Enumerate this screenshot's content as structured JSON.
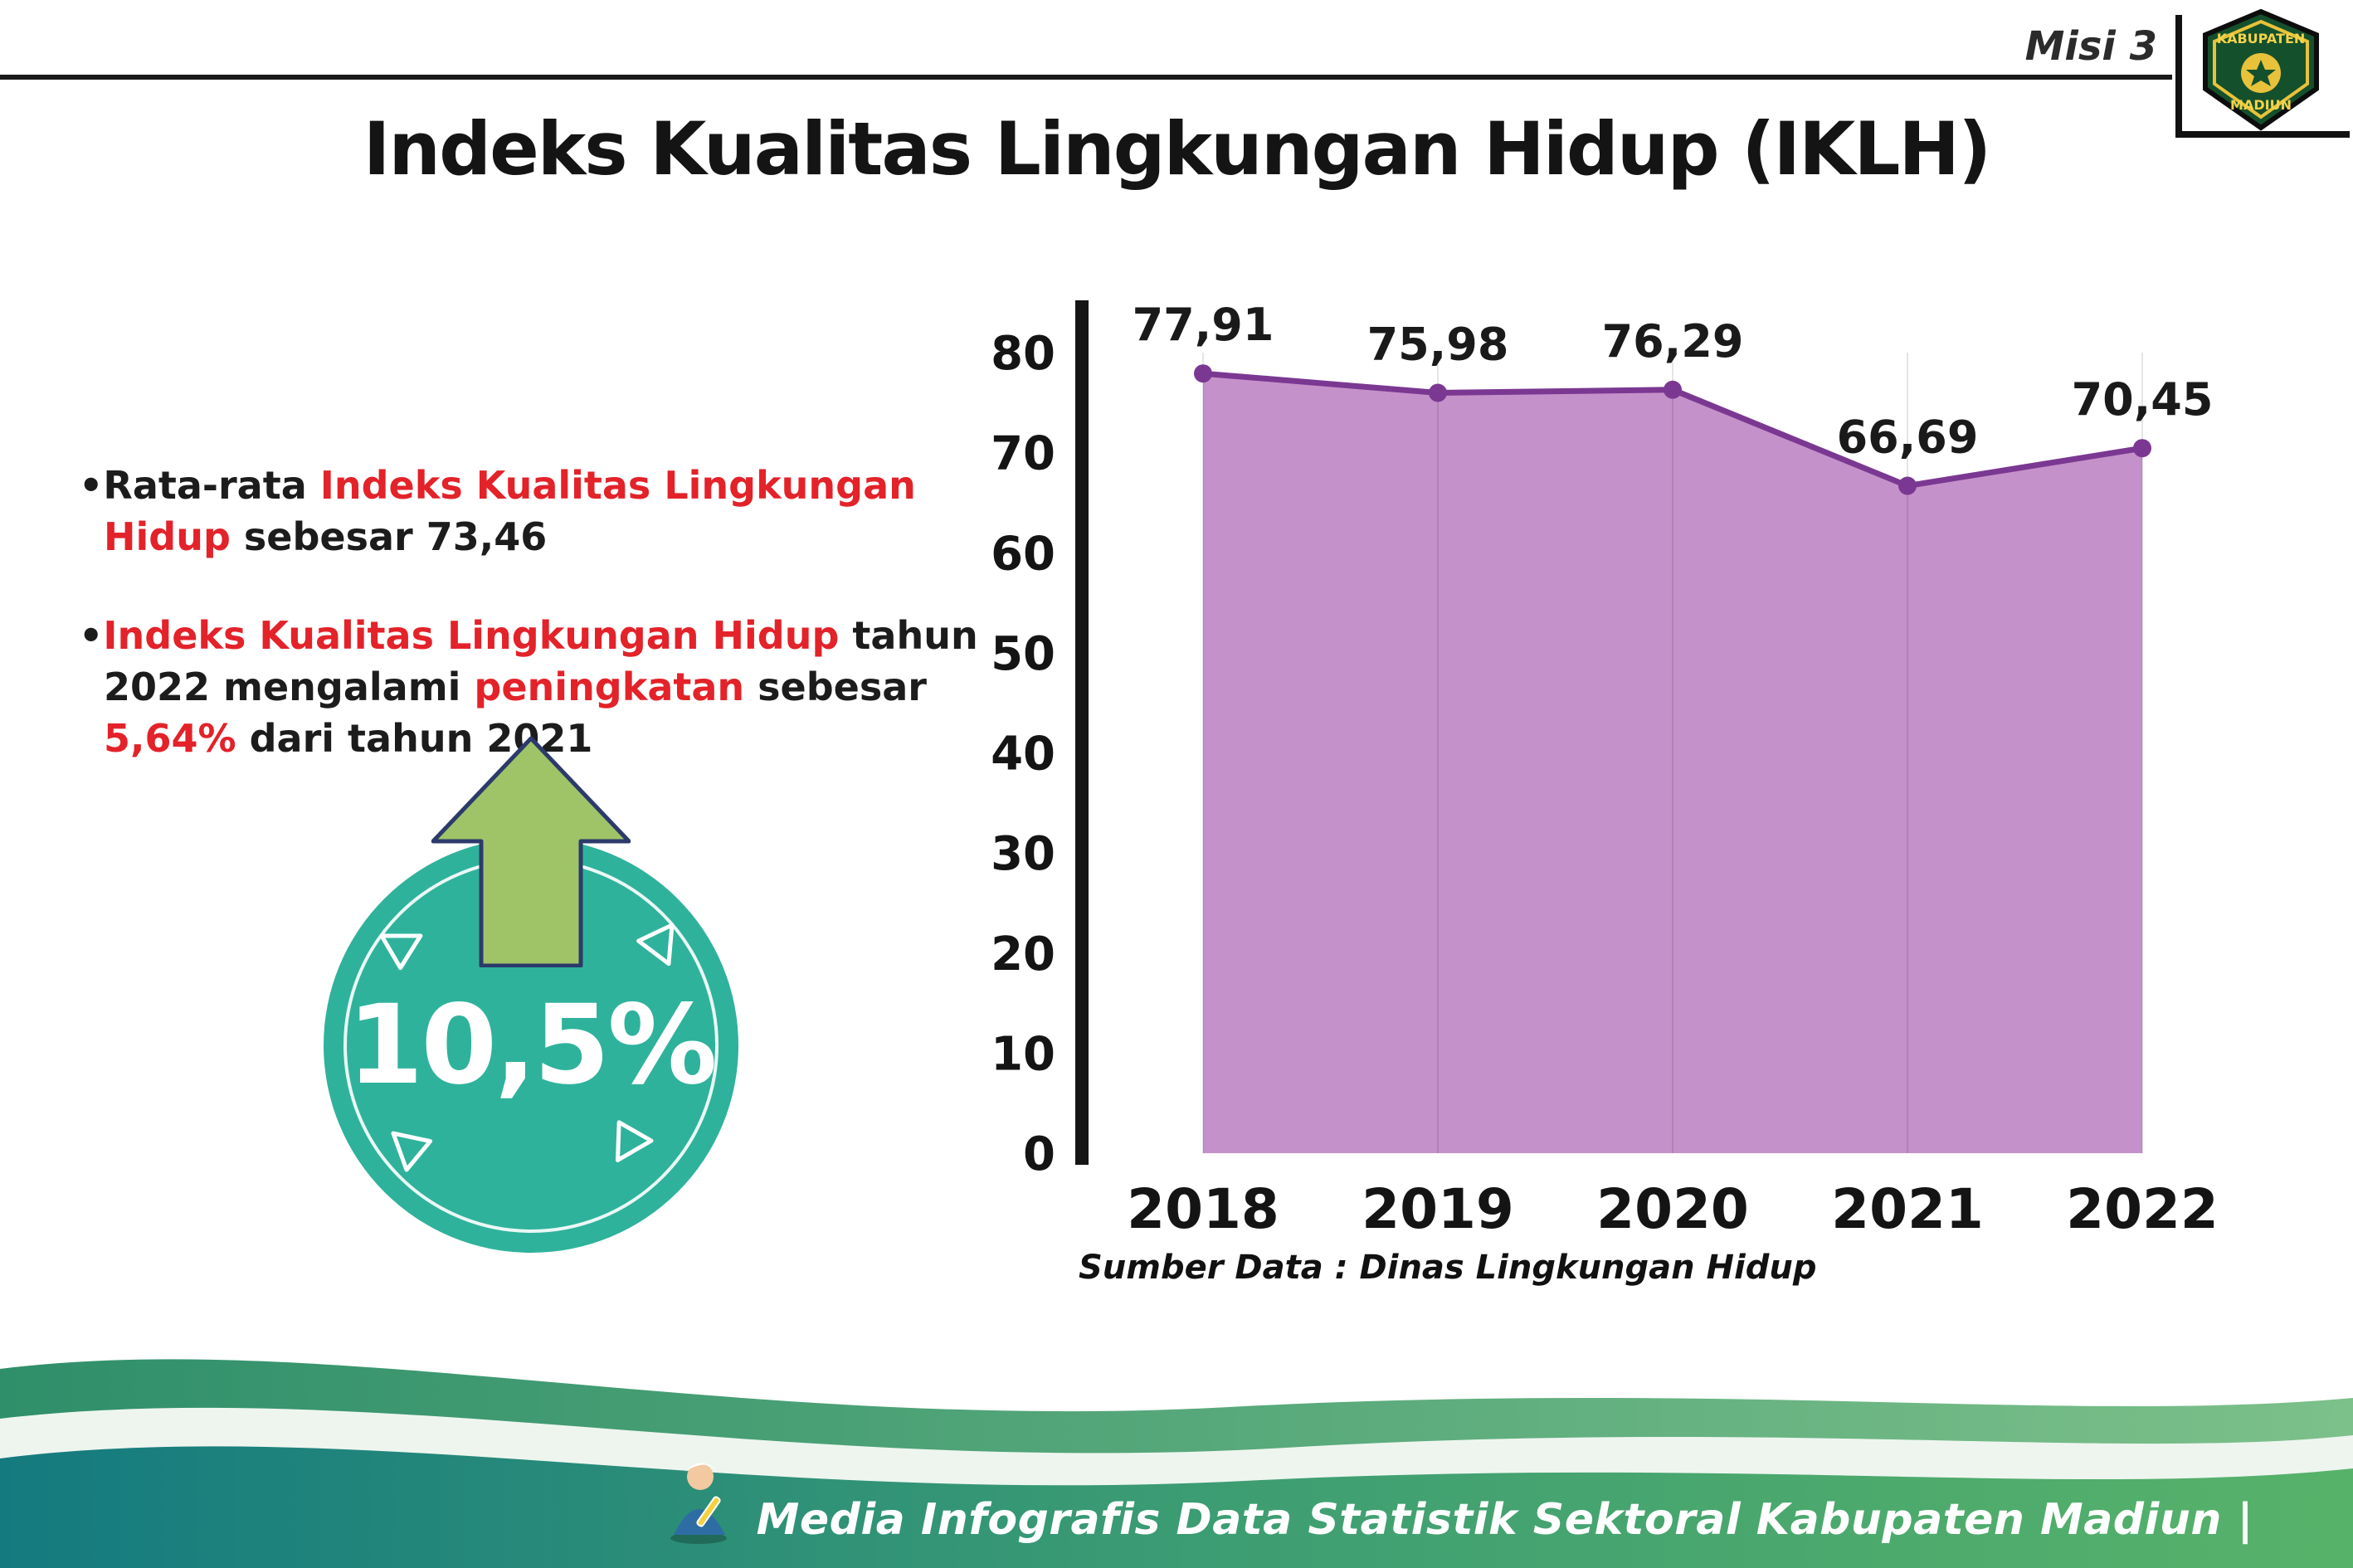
{
  "header": {
    "misi": "Misi 3",
    "logo_line1": "KABUPATEN",
    "logo_line2": "MADIUN"
  },
  "title": "Indeks Kualitas Lingkungan Hidup (IKLH)",
  "bullets": {
    "b1": [
      {
        "text": "•",
        "style": "normal"
      },
      {
        "text": "Rata-rata ",
        "style": "normal"
      },
      {
        "text": "Indeks Kualitas Lingkungan Hidup",
        "style": "red"
      },
      {
        "text": " sebesar 73,46",
        "style": "normal"
      }
    ],
    "b2": [
      {
        "text": "•",
        "style": "normal"
      },
      {
        "text": "Indeks Kualitas Lingkungan Hidup",
        "style": "red"
      },
      {
        "text": " tahun 2022 mengalami ",
        "style": "normal"
      },
      {
        "text": "peningkatan",
        "style": "red"
      },
      {
        "text": " sebesar ",
        "style": "normal"
      },
      {
        "text": "5,64%",
        "style": "red"
      },
      {
        "text": " dari tahun 2021",
        "style": "normal"
      }
    ]
  },
  "badge": {
    "value": "10,5%"
  },
  "chart_data": {
    "type": "area",
    "x": [
      "2018",
      "2019",
      "2020",
      "2021",
      "2022"
    ],
    "series": [
      {
        "name": "IKLH",
        "values": [
          77.91,
          75.98,
          76.29,
          66.69,
          70.45
        ]
      }
    ],
    "point_labels": [
      "77,91",
      "75,98",
      "76,29",
      "66,69",
      "70,45"
    ],
    "ylim": [
      0,
      80
    ],
    "ytick_step": 10,
    "grid": "faint-vertical",
    "legend": "none",
    "source": "Sumber Data : Dinas Lingkungan Hidup",
    "colors": {
      "area": "#c591ca",
      "line": "#7b3892",
      "marker": "#7b3892"
    }
  },
  "footer": {
    "text": "Media Infografis Data Statistik Sektoral Kabupaten Madiun |"
  },
  "colors": {
    "accent_red": "#e32229",
    "circle_teal": "#2fb29c",
    "arrow_green": "#9fc468",
    "footer_teal": "#157a7f",
    "footer_green": "#57b269"
  }
}
